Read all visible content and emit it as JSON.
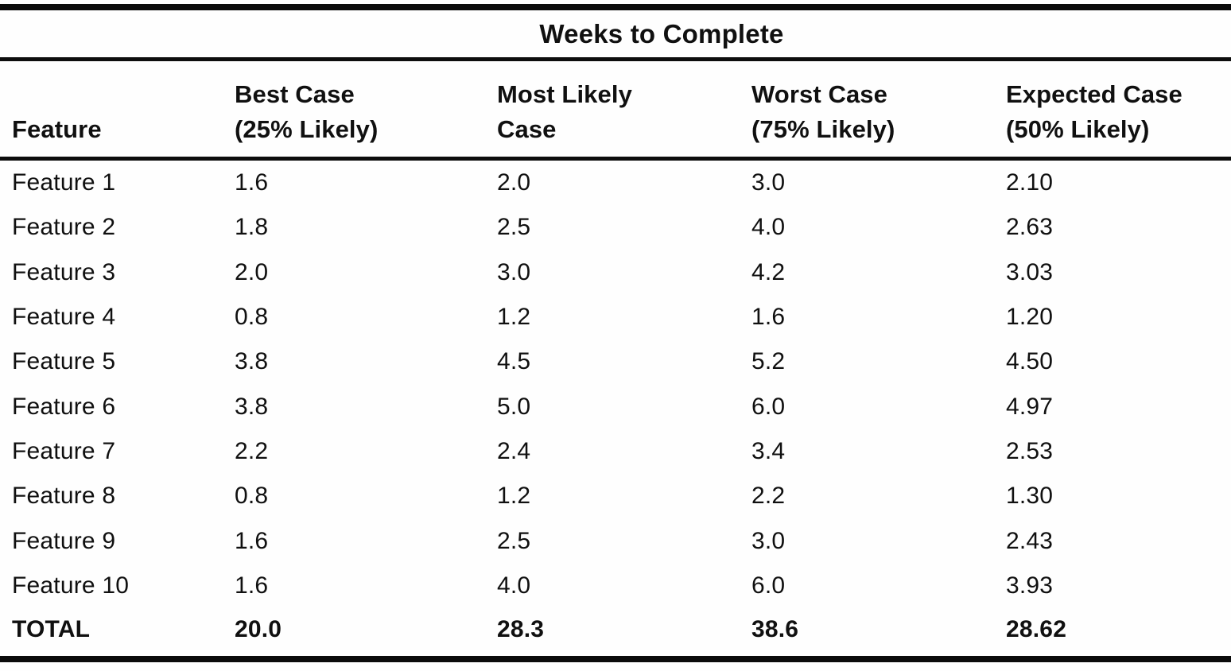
{
  "table": {
    "spanner_title": "Weeks to Complete",
    "columns": [
      {
        "label": "Feature"
      },
      {
        "label": "Best Case\n(25% Likely)"
      },
      {
        "label": "Most Likely\nCase"
      },
      {
        "label": "Worst Case\n(75% Likely)"
      },
      {
        "label": "Expected Case\n(50% Likely)"
      }
    ],
    "rows": [
      {
        "feature": "Feature 1",
        "best": "1.6",
        "most_likely": "2.0",
        "worst": "3.0",
        "expected": "2.10"
      },
      {
        "feature": "Feature 2",
        "best": "1.8",
        "most_likely": "2.5",
        "worst": "4.0",
        "expected": "2.63"
      },
      {
        "feature": "Feature 3",
        "best": "2.0",
        "most_likely": "3.0",
        "worst": "4.2",
        "expected": "3.03"
      },
      {
        "feature": "Feature 4",
        "best": "0.8",
        "most_likely": "1.2",
        "worst": "1.6",
        "expected": "1.20"
      },
      {
        "feature": "Feature 5",
        "best": "3.8",
        "most_likely": "4.5",
        "worst": "5.2",
        "expected": "4.50"
      },
      {
        "feature": "Feature 6",
        "best": "3.8",
        "most_likely": "5.0",
        "worst": "6.0",
        "expected": "4.97"
      },
      {
        "feature": "Feature 7",
        "best": "2.2",
        "most_likely": "2.4",
        "worst": "3.4",
        "expected": "2.53"
      },
      {
        "feature": "Feature 8",
        "best": "0.8",
        "most_likely": "1.2",
        "worst": "2.2",
        "expected": "1.30"
      },
      {
        "feature": "Feature 9",
        "best": "1.6",
        "most_likely": "2.5",
        "worst": "3.0",
        "expected": "2.43"
      },
      {
        "feature": "Feature 10",
        "best": "1.6",
        "most_likely": "4.0",
        "worst": "6.0",
        "expected": "3.93"
      }
    ],
    "total": {
      "feature": "TOTAL",
      "best": "20.0",
      "most_likely": "28.3",
      "worst": "38.6",
      "expected": "28.62"
    }
  },
  "chart_data": {
    "type": "table",
    "title": "Weeks to Complete",
    "columns": [
      "Feature",
      "Best Case (25% Likely)",
      "Most Likely Case",
      "Worst Case (75% Likely)",
      "Expected Case (50% Likely)"
    ],
    "rows": [
      [
        "Feature 1",
        1.6,
        2.0,
        3.0,
        2.1
      ],
      [
        "Feature 2",
        1.8,
        2.5,
        4.0,
        2.63
      ],
      [
        "Feature 3",
        2.0,
        3.0,
        4.2,
        3.03
      ],
      [
        "Feature 4",
        0.8,
        1.2,
        1.6,
        1.2
      ],
      [
        "Feature 5",
        3.8,
        4.5,
        5.2,
        4.5
      ],
      [
        "Feature 6",
        3.8,
        5.0,
        6.0,
        4.97
      ],
      [
        "Feature 7",
        2.2,
        2.4,
        3.4,
        2.53
      ],
      [
        "Feature 8",
        0.8,
        1.2,
        2.2,
        1.3
      ],
      [
        "Feature 9",
        1.6,
        2.5,
        3.0,
        2.43
      ],
      [
        "Feature 10",
        1.6,
        4.0,
        6.0,
        3.93
      ],
      [
        "TOTAL",
        20.0,
        28.3,
        38.6,
        28.62
      ]
    ],
    "colors": {
      "ink": "#0b0b0b",
      "paper": "#fefefe"
    }
  }
}
